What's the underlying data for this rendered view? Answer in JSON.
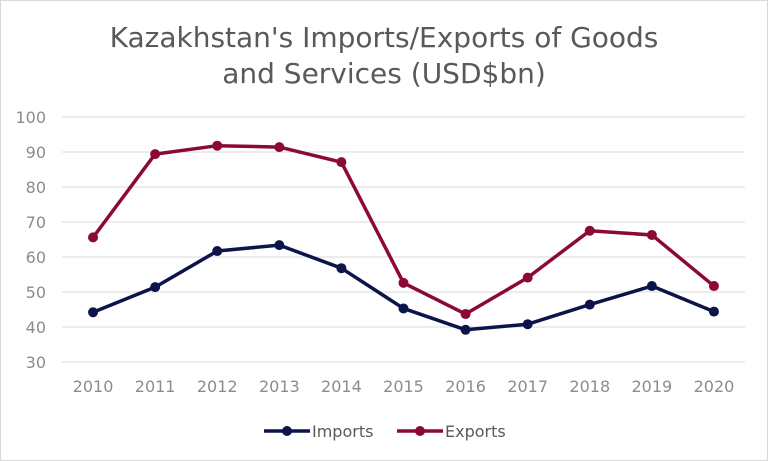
{
  "chart_data": {
    "type": "line",
    "title_lines": [
      "Kazakhstan's Imports/Exports of Goods",
      "and Services (USD$bn)"
    ],
    "x": [
      "2010",
      "2011",
      "2012",
      "2013",
      "2014",
      "2015",
      "2016",
      "2017",
      "2018",
      "2019",
      "2020"
    ],
    "ylim": [
      30,
      100
    ],
    "yticks": [
      "30",
      "40",
      "50",
      "60",
      "70",
      "80",
      "90",
      "100"
    ],
    "grid": true,
    "legend_position": "bottom",
    "series": [
      {
        "name": "Imports",
        "color": "#0c1449",
        "values": [
          44.2,
          51.4,
          61.7,
          63.4,
          56.8,
          45.3,
          39.2,
          40.8,
          46.4,
          51.7,
          44.4
        ]
      },
      {
        "name": "Exports",
        "color": "#8b0a32",
        "values": [
          65.6,
          89.4,
          91.8,
          91.4,
          87.1,
          52.6,
          43.7,
          54.1,
          67.5,
          66.3,
          51.7
        ]
      }
    ]
  }
}
